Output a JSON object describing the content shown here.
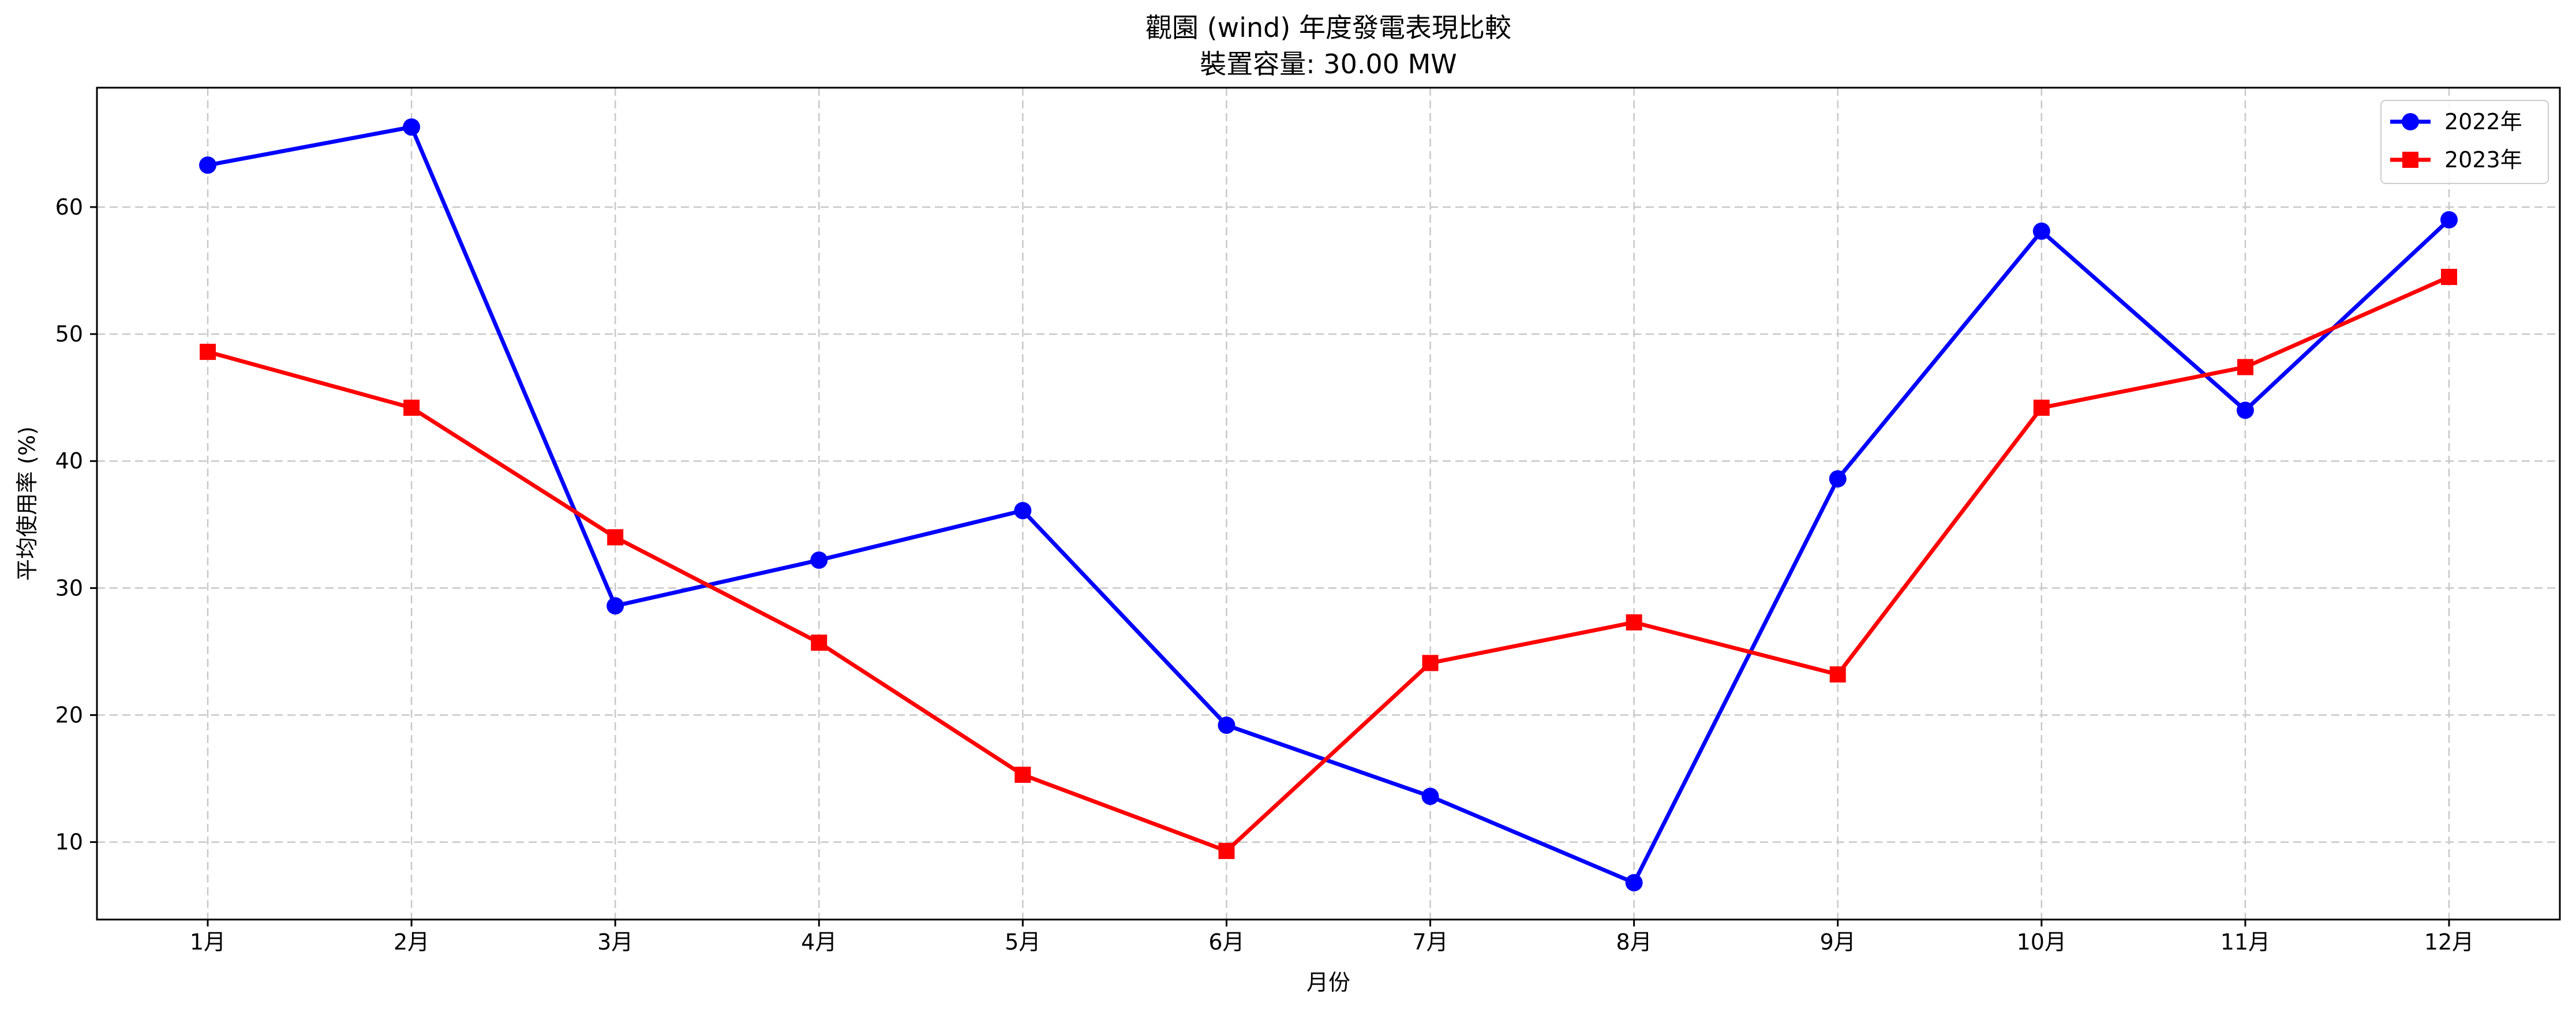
{
  "chart_data": {
    "type": "line",
    "title": "觀園 (wind) 年度發電表現比較",
    "subtitle": "裝置容量: 30.00 MW",
    "xlabel": "月份",
    "ylabel": "平均使用率 (%)",
    "categories": [
      "1月",
      "2月",
      "3月",
      "4月",
      "5月",
      "6月",
      "7月",
      "8月",
      "9月",
      "10月",
      "11月",
      "12月"
    ],
    "yticks": [
      10,
      20,
      30,
      40,
      50,
      60
    ],
    "ylim": [
      3.9,
      69.4
    ],
    "grid": true,
    "legend_position": "top-right",
    "series": [
      {
        "name": "2022年",
        "color": "#0000ff",
        "marker": "circle",
        "values": [
          63.3,
          66.3,
          28.6,
          32.2,
          36.1,
          19.2,
          13.6,
          6.8,
          38.6,
          58.1,
          44.0,
          59.0
        ]
      },
      {
        "name": "2023年",
        "color": "#ff0000",
        "marker": "square",
        "values": [
          48.6,
          44.2,
          34.0,
          25.7,
          15.3,
          9.3,
          24.1,
          27.3,
          23.2,
          44.2,
          47.4,
          54.5
        ]
      }
    ]
  }
}
